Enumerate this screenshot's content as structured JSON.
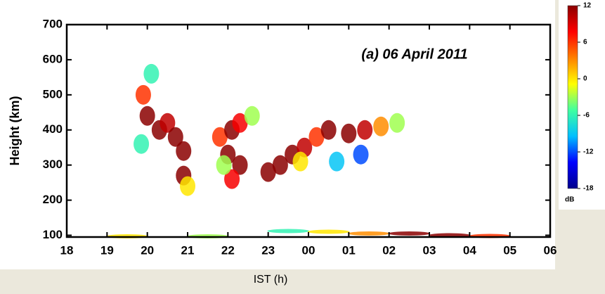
{
  "chart_data": {
    "type": "radar-hti",
    "annotation": "(a) 06 April 2011",
    "x_label": "IST (h)",
    "y_label": "Height (km)",
    "xlim": [
      18,
      30
    ],
    "xticks": [
      18,
      19,
      20,
      21,
      22,
      23,
      {
        "value": 24,
        "label": "00"
      },
      {
        "value": 25,
        "label": "01"
      },
      {
        "value": 26,
        "label": "02"
      },
      {
        "value": 27,
        "label": "03"
      },
      {
        "value": 28,
        "label": "04"
      },
      {
        "value": 29,
        "label": "05"
      },
      {
        "value": 30,
        "label": "06"
      }
    ],
    "ylim": [
      95,
      700
    ],
    "yticks": [
      100,
      200,
      300,
      400,
      500,
      600,
      700
    ],
    "colorbar": {
      "label": "dB",
      "lim": [
        -18,
        12
      ],
      "ticks": [
        12,
        6,
        0,
        -6,
        -12,
        -18
      ],
      "colormap": [
        "#00008b",
        "#0000ff",
        "#00bfff",
        "#40ffa0",
        "#ffff00",
        "#ff8000",
        "#ff0000",
        "#8b0000"
      ]
    },
    "echoes": {
      "x": [
        19.9,
        20.0,
        20.3,
        20.5,
        20.7,
        20.9,
        20.9,
        21.0,
        19.85,
        20.1,
        21.8,
        22.1,
        22.3,
        22.0,
        22.3,
        22.1,
        21.9,
        22.6,
        23.0,
        23.3,
        23.6,
        23.9,
        24.2,
        23.8,
        24.5,
        25.0,
        25.4,
        25.8,
        26.2,
        24.7,
        25.3,
        23.5,
        24.5,
        25.5,
        26.5,
        27.5,
        28.5,
        19.5,
        21.5
      ],
      "height": [
        500,
        440,
        400,
        420,
        380,
        340,
        270,
        240,
        360,
        560,
        380,
        400,
        420,
        330,
        300,
        260,
        300,
        440,
        280,
        300,
        330,
        350,
        380,
        310,
        400,
        390,
        400,
        410,
        420,
        310,
        330,
        112,
        110,
        105,
        105,
        100,
        98,
        97,
        97
      ],
      "db": [
        6,
        12,
        12,
        10,
        12,
        12,
        12,
        0,
        -6,
        -6,
        6,
        12,
        8,
        12,
        12,
        8,
        -3,
        -3,
        12,
        12,
        12,
        10,
        6,
        0,
        12,
        12,
        10,
        3,
        -3,
        -9,
        -12,
        -6,
        0,
        3,
        12,
        12,
        6,
        0,
        -3
      ]
    }
  }
}
